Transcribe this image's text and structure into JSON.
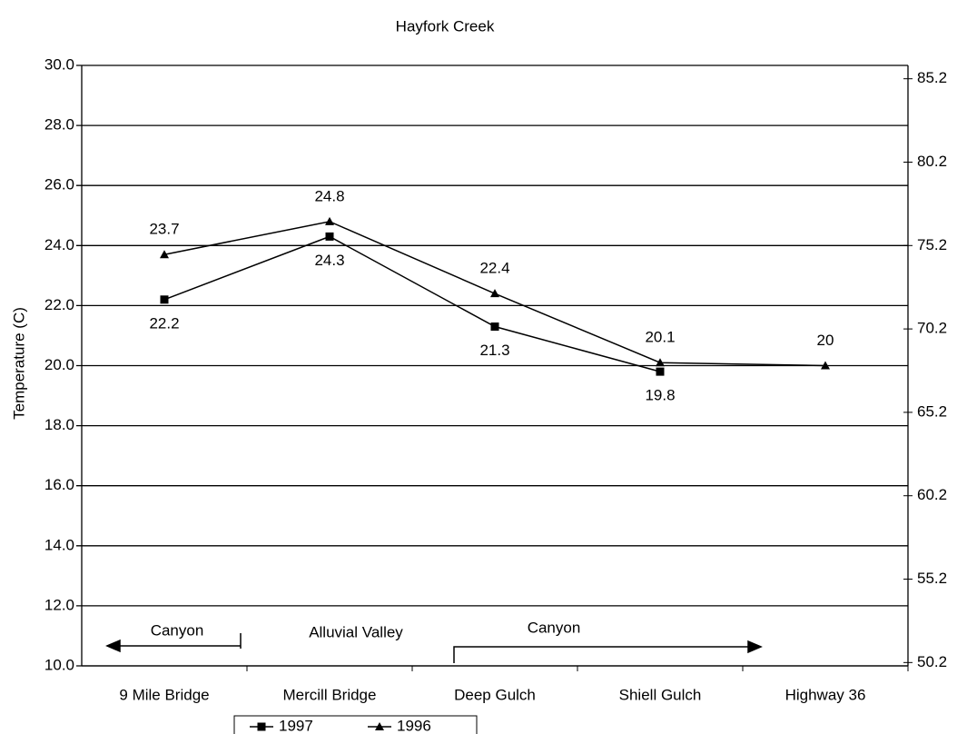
{
  "chart_data": {
    "type": "line",
    "title": "Hayfork Creek",
    "y_label": "Temperature (C)",
    "categories": [
      "9 Mile Bridge",
      "Mercill Bridge",
      "Deep Gulch",
      "Shiell Gulch",
      "Highway 36"
    ],
    "series": [
      {
        "name": "1997",
        "color": "#000000",
        "marker": "square",
        "values": [
          22.2,
          24.3,
          21.3,
          19.8,
          null
        ]
      },
      {
        "name": "1996",
        "color": "#000000",
        "marker": "triangle",
        "values": [
          23.7,
          24.8,
          22.4,
          20.1,
          20.0
        ]
      }
    ],
    "ylim": [
      10,
      30
    ],
    "yticks": [
      {
        "value": 10,
        "label": "10.0"
      },
      {
        "value": 12,
        "label": "12.0"
      },
      {
        "value": 14,
        "label": "14.0"
      },
      {
        "value": 16,
        "label": "16.0"
      },
      {
        "value": 18,
        "label": "18.0"
      },
      {
        "value": 20,
        "label": "20.0"
      },
      {
        "value": 22,
        "label": "22.0"
      },
      {
        "value": 24,
        "label": "24.0"
      },
      {
        "value": 26,
        "label": "26.0"
      },
      {
        "value": 28,
        "label": "28.0"
      },
      {
        "value": 30,
        "label": "30.0"
      }
    ],
    "y2lim": [
      50,
      86
    ],
    "y2ticks": [
      50.2,
      55.2,
      60.2,
      65.2,
      70.2,
      75.2,
      80.2,
      85.2
    ],
    "grid": true,
    "annotations": [
      "Canyon",
      "Alluvial Valley",
      "Canyon"
    ]
  }
}
